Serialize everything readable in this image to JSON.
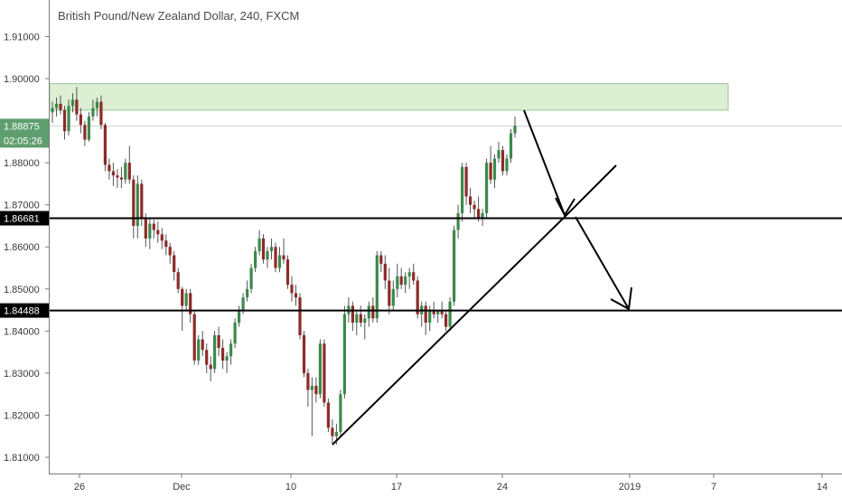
{
  "chart_data": {
    "type": "candlestick",
    "title": "British Pound/New Zealand Dollar, 240, FXCM",
    "y_ticks": [
      "1.91000",
      "1.90000",
      "1.88000",
      "1.87000",
      "1.86000",
      "1.85000",
      "1.84000",
      "1.83000",
      "1.82000",
      "1.81000"
    ],
    "x_ticks": [
      "26",
      "Dec",
      "10",
      "17",
      "24",
      "2019",
      "7",
      "14"
    ],
    "ylim": [
      1.8065,
      1.9175
    ],
    "last_price": {
      "label": "1.88875",
      "value": 1.88875,
      "countdown": "02:05:26"
    },
    "levels": [
      {
        "label": "1.86681",
        "value": 1.86681
      },
      {
        "label": "1.84488",
        "value": 1.84488
      }
    ],
    "resistance_zone": {
      "low": 1.8925,
      "high": 1.8988
    },
    "colors": {
      "up": "#3c8a4c",
      "down": "#8e2a2a",
      "zone_fill": "#dcefd2",
      "zone_stroke": "#9cc49a",
      "price_badge": "#5f9e6e",
      "level_badge": "#000000"
    },
    "grid": false,
    "candles": [
      [
        1.892,
        1.8945,
        1.8895,
        1.893
      ],
      [
        1.893,
        1.8955,
        1.891,
        1.894
      ],
      [
        1.894,
        1.896,
        1.8915,
        1.8925
      ],
      [
        1.8925,
        1.8935,
        1.8855,
        1.8875
      ],
      [
        1.8875,
        1.895,
        1.8865,
        1.8935
      ],
      [
        1.8935,
        1.8965,
        1.892,
        1.895
      ],
      [
        1.895,
        1.898,
        1.89,
        1.8915
      ],
      [
        1.8915,
        1.893,
        1.887,
        1.889
      ],
      [
        1.889,
        1.89,
        1.884,
        1.8855
      ],
      [
        1.8855,
        1.892,
        1.885,
        1.891
      ],
      [
        1.891,
        1.895,
        1.89,
        1.893
      ],
      [
        1.893,
        1.8955,
        1.891,
        1.8945
      ],
      [
        1.8945,
        1.896,
        1.888,
        1.889
      ],
      [
        1.889,
        1.8895,
        1.878,
        1.8795
      ],
      [
        1.8795,
        1.881,
        1.876,
        1.878
      ],
      [
        1.878,
        1.88,
        1.8745,
        1.877
      ],
      [
        1.877,
        1.8785,
        1.874,
        1.8765
      ],
      [
        1.8765,
        1.879,
        1.874,
        1.876
      ],
      [
        1.876,
        1.881,
        1.875,
        1.88
      ],
      [
        1.88,
        1.884,
        1.875,
        1.876
      ],
      [
        1.876,
        1.877,
        1.862,
        1.865
      ],
      [
        1.865,
        1.877,
        1.862,
        1.875
      ],
      [
        1.875,
        1.876,
        1.865,
        1.867
      ],
      [
        1.867,
        1.868,
        1.86,
        1.862
      ],
      [
        1.862,
        1.867,
        1.8595,
        1.8655
      ],
      [
        1.8655,
        1.8665,
        1.862,
        1.864
      ],
      [
        1.864,
        1.866,
        1.861,
        1.863
      ],
      [
        1.863,
        1.8645,
        1.8595,
        1.8615
      ],
      [
        1.8615,
        1.863,
        1.858,
        1.86
      ],
      [
        1.86,
        1.861,
        1.856,
        1.858
      ],
      [
        1.858,
        1.859,
        1.852,
        1.854
      ],
      [
        1.854,
        1.855,
        1.849,
        1.85
      ],
      [
        1.85,
        1.8505,
        1.84,
        1.846
      ],
      [
        1.846,
        1.85,
        1.845,
        1.849
      ],
      [
        1.849,
        1.85,
        1.842,
        1.844
      ],
      [
        1.844,
        1.845,
        1.832,
        1.833
      ],
      [
        1.833,
        1.839,
        1.832,
        1.838
      ],
      [
        1.838,
        1.84,
        1.834,
        1.8355
      ],
      [
        1.8355,
        1.837,
        1.83,
        1.832
      ],
      [
        1.832,
        1.834,
        1.828,
        1.831
      ],
      [
        1.831,
        1.84,
        1.83,
        1.839
      ],
      [
        1.839,
        1.841,
        1.834,
        1.836
      ],
      [
        1.836,
        1.838,
        1.831,
        1.833
      ],
      [
        1.833,
        1.835,
        1.83,
        1.834
      ],
      [
        1.834,
        1.838,
        1.832,
        1.837
      ],
      [
        1.837,
        1.843,
        1.836,
        1.842
      ],
      [
        1.842,
        1.846,
        1.841,
        1.845
      ],
      [
        1.845,
        1.849,
        1.844,
        1.848
      ],
      [
        1.848,
        1.852,
        1.847,
        1.85
      ],
      [
        1.85,
        1.856,
        1.849,
        1.855
      ],
      [
        1.855,
        1.86,
        1.854,
        1.859
      ],
      [
        1.859,
        1.864,
        1.858,
        1.862
      ],
      [
        1.862,
        1.863,
        1.856,
        1.857
      ],
      [
        1.857,
        1.86,
        1.855,
        1.859
      ],
      [
        1.859,
        1.862,
        1.857,
        1.86
      ],
      [
        1.86,
        1.861,
        1.854,
        1.855
      ],
      [
        1.855,
        1.86,
        1.854,
        1.858
      ],
      [
        1.858,
        1.862,
        1.856,
        1.857
      ],
      [
        1.857,
        1.858,
        1.85,
        1.851
      ],
      [
        1.851,
        1.853,
        1.847,
        1.849
      ],
      [
        1.849,
        1.851,
        1.846,
        1.848
      ],
      [
        1.848,
        1.849,
        1.838,
        1.839
      ],
      [
        1.839,
        1.84,
        1.829,
        1.83
      ],
      [
        1.83,
        1.831,
        1.822,
        1.826
      ],
      [
        1.826,
        1.829,
        1.815,
        1.827
      ],
      [
        1.827,
        1.829,
        1.823,
        1.825
      ],
      [
        1.825,
        1.838,
        1.824,
        1.837
      ],
      [
        1.837,
        1.838,
        1.822,
        1.823
      ],
      [
        1.823,
        1.824,
        1.816,
        1.817
      ],
      [
        1.817,
        1.819,
        1.813,
        1.815
      ],
      [
        1.815,
        1.818,
        1.813,
        1.816
      ],
      [
        1.816,
        1.826,
        1.815,
        1.825
      ],
      [
        1.825,
        1.846,
        1.824,
        1.844
      ],
      [
        1.844,
        1.848,
        1.842,
        1.846
      ],
      [
        1.846,
        1.847,
        1.84,
        1.842
      ],
      [
        1.842,
        1.845,
        1.839,
        1.844
      ],
      [
        1.844,
        1.846,
        1.841,
        1.842
      ],
      [
        1.842,
        1.844,
        1.838,
        1.843
      ],
      [
        1.843,
        1.847,
        1.841,
        1.846
      ],
      [
        1.846,
        1.848,
        1.842,
        1.843
      ],
      [
        1.843,
        1.859,
        1.842,
        1.858
      ],
      [
        1.858,
        1.859,
        1.854,
        1.856
      ],
      [
        1.856,
        1.858,
        1.85,
        1.852
      ],
      [
        1.852,
        1.855,
        1.844,
        1.846
      ],
      [
        1.846,
        1.852,
        1.845,
        1.85
      ],
      [
        1.85,
        1.856,
        1.848,
        1.853
      ],
      [
        1.853,
        1.855,
        1.85,
        1.851
      ],
      [
        1.851,
        1.854,
        1.849,
        1.853
      ],
      [
        1.853,
        1.855,
        1.85,
        1.854
      ],
      [
        1.854,
        1.856,
        1.851,
        1.852
      ],
      [
        1.852,
        1.853,
        1.843,
        1.844
      ],
      [
        1.844,
        1.847,
        1.841,
        1.846
      ],
      [
        1.846,
        1.847,
        1.839,
        1.842
      ],
      [
        1.842,
        1.846,
        1.84,
        1.845
      ],
      [
        1.845,
        1.847,
        1.843,
        1.844
      ],
      [
        1.844,
        1.845,
        1.842,
        1.845
      ],
      [
        1.845,
        1.847,
        1.843,
        1.844
      ],
      [
        1.844,
        1.845,
        1.84,
        1.841
      ],
      [
        1.841,
        1.848,
        1.84,
        1.847
      ],
      [
        1.847,
        1.865,
        1.846,
        1.864
      ],
      [
        1.864,
        1.87,
        1.862,
        1.868
      ],
      [
        1.868,
        1.88,
        1.866,
        1.879
      ],
      [
        1.879,
        1.88,
        1.87,
        1.872
      ],
      [
        1.872,
        1.874,
        1.868,
        1.87
      ],
      [
        1.87,
        1.871,
        1.867,
        1.869
      ],
      [
        1.869,
        1.872,
        1.866,
        1.867
      ],
      [
        1.867,
        1.869,
        1.865,
        1.868
      ],
      [
        1.868,
        1.881,
        1.867,
        1.88
      ],
      [
        1.88,
        1.884,
        1.875,
        1.876
      ],
      [
        1.876,
        1.882,
        1.874,
        1.881
      ],
      [
        1.881,
        1.885,
        1.88,
        1.883
      ],
      [
        1.883,
        1.884,
        1.877,
        1.878
      ],
      [
        1.878,
        1.882,
        1.877,
        1.881
      ],
      [
        1.881,
        1.888,
        1.88,
        1.887
      ],
      [
        1.887,
        1.891,
        1.886,
        1.8888
      ]
    ]
  }
}
